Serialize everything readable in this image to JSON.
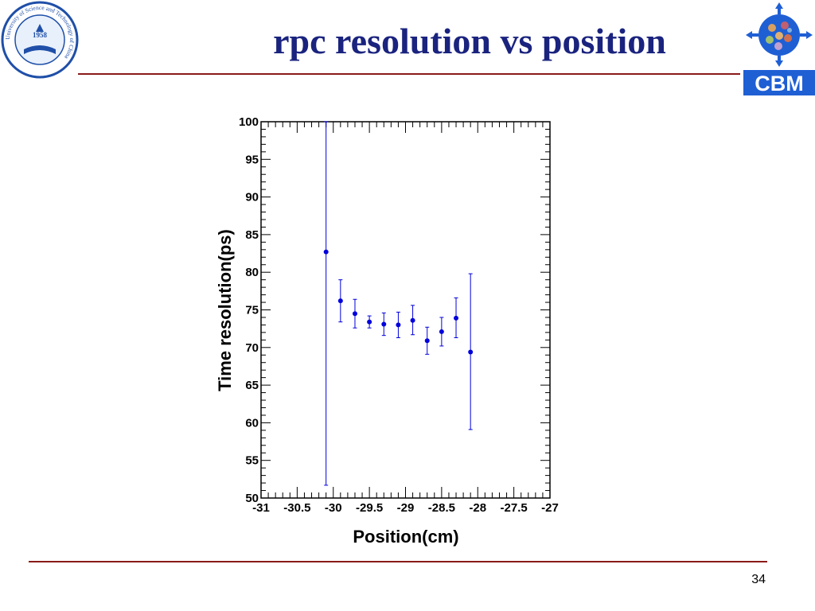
{
  "slide": {
    "title": "rpc resolution vs position",
    "page_number": "34"
  },
  "logos": {
    "left_year": "1958",
    "left_text": "University of Science and Technology of China",
    "right_text": "CBM"
  },
  "colors": {
    "title": "#1a237e",
    "rule": "#8b1a1a",
    "marker": "#0000dd",
    "cbm_bg": "#1f5fd4"
  },
  "chart_data": {
    "type": "scatter",
    "xlabel": "Position(cm)",
    "ylabel": "Time resolution(ps)",
    "xlim": [
      -31,
      -27
    ],
    "ylim": [
      50,
      100
    ],
    "x_ticks": [
      -31,
      -30.5,
      -30,
      -29.5,
      -29,
      -28.5,
      -28,
      -27.5,
      -27
    ],
    "x_tick_labels": [
      "-31",
      "-30.5",
      "-30",
      "-29.5",
      "-29",
      "-28.5",
      "-28",
      "-27.5",
      "-27"
    ],
    "y_ticks": [
      50,
      55,
      60,
      65,
      70,
      75,
      80,
      85,
      90,
      95,
      100
    ],
    "y_tick_labels": [
      "50",
      "55",
      "60",
      "65",
      "70",
      "75",
      "80",
      "85",
      "90",
      "95",
      "100"
    ],
    "grid": false,
    "points": [
      {
        "x": -30.1,
        "y": 82.7,
        "err_low": 51.7,
        "err_high": 100
      },
      {
        "x": -29.9,
        "y": 76.2,
        "err_low": 73.4,
        "err_high": 79.0
      },
      {
        "x": -29.7,
        "y": 74.5,
        "err_low": 72.6,
        "err_high": 76.4
      },
      {
        "x": -29.5,
        "y": 73.4,
        "err_low": 72.6,
        "err_high": 74.2
      },
      {
        "x": -29.3,
        "y": 73.1,
        "err_low": 71.6,
        "err_high": 74.6
      },
      {
        "x": -29.1,
        "y": 73.0,
        "err_low": 71.3,
        "err_high": 74.7
      },
      {
        "x": -28.9,
        "y": 73.6,
        "err_low": 71.7,
        "err_high": 75.6
      },
      {
        "x": -28.7,
        "y": 70.9,
        "err_low": 69.1,
        "err_high": 72.7
      },
      {
        "x": -28.5,
        "y": 72.1,
        "err_low": 70.2,
        "err_high": 74.0
      },
      {
        "x": -28.3,
        "y": 73.9,
        "err_low": 71.3,
        "err_high": 76.6
      },
      {
        "x": -28.1,
        "y": 69.4,
        "err_low": 59.1,
        "err_high": 79.8
      }
    ]
  }
}
